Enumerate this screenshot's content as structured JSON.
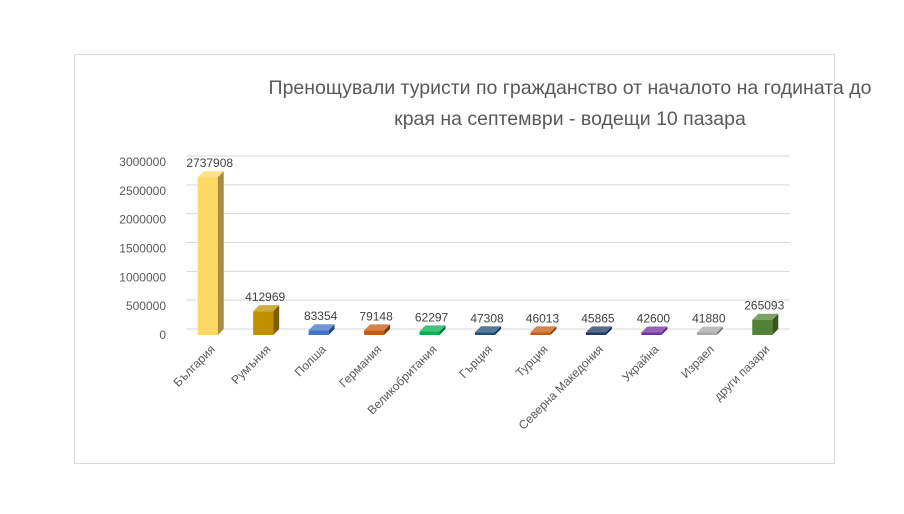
{
  "chart_data": {
    "type": "bar",
    "title": "Пренощували туристи по гражданство от началото на годината до края на септември - водещи 10 пазара",
    "xlabel": "",
    "ylabel": "",
    "ylim": [
      0,
      3000000
    ],
    "yticks": [
      0,
      500000,
      1000000,
      1500000,
      2000000,
      2500000,
      3000000
    ],
    "ytick_labels": [
      "0",
      "500000",
      "1000000",
      "1500000",
      "2000000",
      "2500000",
      "3000000"
    ],
    "grid": true,
    "legend": "none",
    "categories": [
      "България",
      "Румъния",
      "Полша",
      "Германия",
      "Великобритания",
      "Гърция",
      "Турция",
      "Северна Македония",
      "Украйна",
      "Израел",
      "други пазари"
    ],
    "values": [
      2737908,
      412969,
      83354,
      79148,
      62297,
      47308,
      46013,
      45865,
      42600,
      41880,
      265093
    ],
    "value_labels": [
      "2737908",
      "412969",
      "83354",
      "79148",
      "62297",
      "47308",
      "46013",
      "45865",
      "42600",
      "41880",
      "265093"
    ],
    "colors": [
      "#ffd966",
      "#bf9000",
      "#4472c4",
      "#c55a11",
      "#00b050",
      "#1f4e79",
      "#c55a11",
      "#203864",
      "#7030a0",
      "#a6a6a6",
      "#548235"
    ]
  }
}
